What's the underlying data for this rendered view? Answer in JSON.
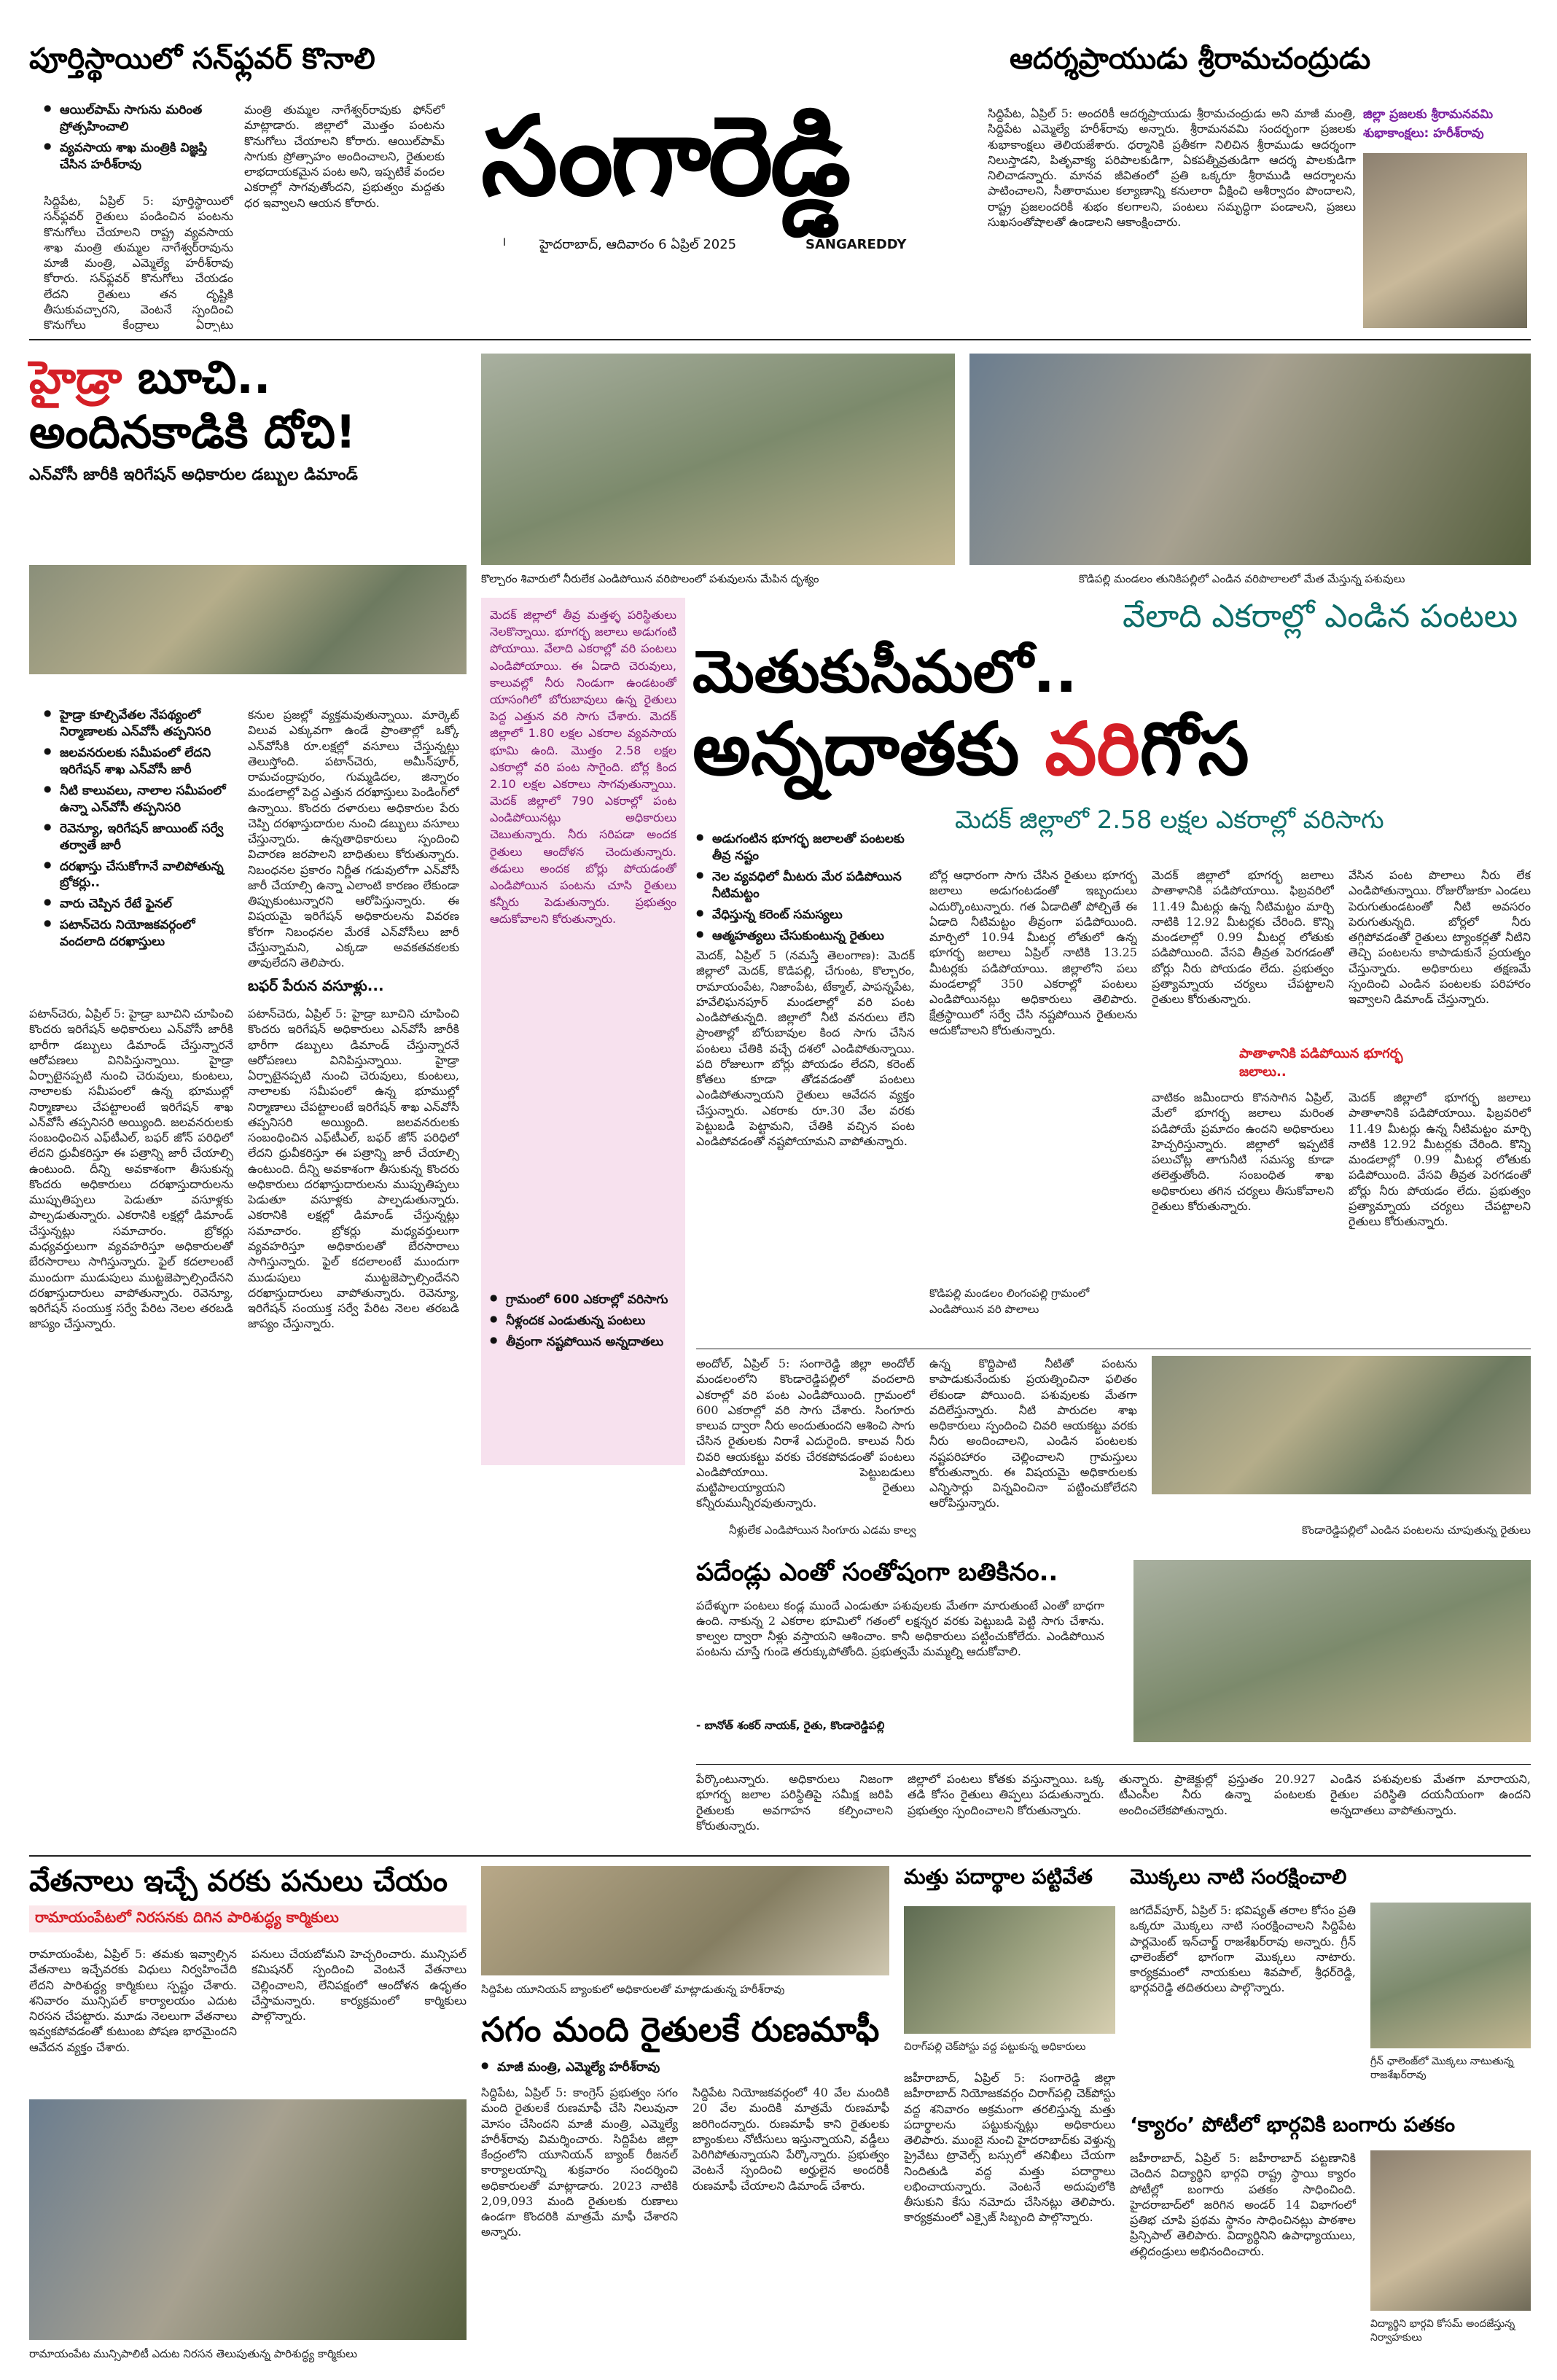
{
  "masthead": {
    "title": "సంగారెడ్డి",
    "dateline": "హైదరాబాద్, ఆదివారం  6 ఏప్రిల్ 2025",
    "roman_title": "SANGAREDDY",
    "page_no": "I"
  },
  "sunflower": {
    "headline": "పూర్తిస్థాయిలో సన్‌ఫ్లవర్ కొనాలి",
    "bullets": [
      "ఆయిల్‌పామ్ సాగును మరింత ప్రోత్సహించాలి",
      "వ్యవసాయ శాఖ మంత్రికి విజ్ఞప్తి చేసిన హరీశ్‌రావు"
    ],
    "body_left": "సిద్దిపేట, ఏప్రిల్ 5: పూర్తిస్థాయిలో సన్‌ఫ్లవర్ రైతులు పండించిన పంటను కొనుగోలు చేయాలని రాష్ట్ర వ్యవసాయ శాఖ మంత్రి తుమ్మల నాగేశ్వర్‌రావును మాజీ మంత్రి, ఎమ్మెల్యే హరీశ్‌రావు కోరారు. సన్‌ఫ్లవర్ కొనుగోలు చేయడం లేదని రైతులు తన దృష్టికి తీసుకువచ్చారని, వెంటనే స్పందించి కొనుగోలు కేంద్రాలు ఏర్పాటు చేయాలన్నారు.",
    "body_right": "మంత్రి తుమ్మల నాగేశ్వర్‌రావుకు ఫోన్‌లో మాట్లాడారు. జిల్లాలో మొత్తం పంటను కొనుగోలు చేయాలని కోరారు. ఆయిల్‌పామ్ సాగుకు ప్రోత్సాహం అందించాలని, రైతులకు లాభదాయకమైన పంట అని, ఇప్పటికే వందల ఎకరాల్లో సాగవుతోందని, ప్రభుత్వం మద్దతు ధర ఇవ్వాలని ఆయన కోరారు."
  },
  "ram": {
    "headline": "ఆదర్శప్రాయుడు శ్రీరామచంద్రుడు",
    "body": "సిద్దిపేట, ఏప్రిల్ 5: అందరికీ ఆదర్శప్రాయుడు శ్రీరామచంద్రుడు అని మాజీ మంత్రి, సిద్దిపేట ఎమ్మెల్యే హరీశ్‌రావు అన్నారు. శ్రీరామనవమి సందర్భంగా ప్రజలకు శుభాకాంక్షలు తెలియజేశారు. ధర్మానికి ప్రతీకగా నిలిచిన శ్రీరాముడు ఆదర్శంగా నిలుస్తాడని, పితృవాక్య పరిపాలకుడిగా, ఏకపత్నీవ్రతుడిగా ఆదర్శ పాలకుడిగా నిలిచాడన్నారు. మానవ జీవితంలో ప్రతి ఒక్కరూ శ్రీరాముడి ఆదర్శాలను పాటించాలని, సీతారాముల కల్యాణాన్ని కనులారా వీక్షించి ఆశీర్వాదం పొందాలని, రాష్ట్ర ప్రజలందరికీ శుభం కలగాలని, పంటలు సమృద్ధిగా పండాలని, ప్రజలు సుఖసంతోషాలతో ఉండాలని ఆకాంక్షించారు.",
    "side_label": "జిల్లా ప్రజలకు శ్రీరామనవమి శుభాకాంక్షలు: హరీశ్‌రావు"
  },
  "hydra": {
    "kicker": "హైడ్రా",
    "line1_rest": " బూచి..",
    "line2": "అందినకాడికి దోచి!",
    "subhead": "ఎన్‌వోసీ జారీకి ఇరిగేషన్ అధికారుల డబ్బుల డిమాండ్",
    "bullets": [
      "హైడ్రా కూల్చివేతల నేపథ్యంలో నిర్మాణాలకు ఎన్‌వోసీ తప్పనిసరి",
      "జలవనరులకు సమీపంలో లేదని ఇరిగేషన్ శాఖ ఎన్‌వోసీ జారీ",
      "నీటి కాలువలు, నాలాల సమీపంలో ఉన్నా ఎన్‌వోసీ తప్పనిసరి",
      "రెవెన్యూ, ఇరిగేషన్ జాయింట్ సర్వే తర్వాతే జారీ",
      "దరఖాస్తు చేసుకోగానే వాలిపోతున్న బ్రోకర్లు..",
      "వారు చెప్పిన రేటే ఫైనల్",
      "పటాన్‌చెరు నియోజకవర్గంలో వందలాది దరఖాస్తులు"
    ],
    "col1": "పటాన్‌చెరు, ఏప్రిల్ 5: హైడ్రా బూచిని చూపించి కొందరు ఇరిగేషన్ అధికారులు ఎన్‌వోసీ జారీకి భారీగా డబ్బులు డిమాండ్ చేస్తున్నారనే ఆరోపణలు వినిపిస్తున్నాయి. హైడ్రా ఏర్పాటైనప్పటి నుంచి చెరువులు, కుంటలు, నాలాలకు సమీపంలో ఉన్న భూముల్లో నిర్మాణాలు చేపట్టాలంటే ఇరిగేషన్ శాఖ ఎన్‌వోసీ తప్పనిసరి అయ్యింది. జలవనరులకు సంబంధించిన ఎఫ్‌టీఎల్, బఫర్ జోన్ పరిధిలో లేదని ధ్రువీకరిస్తూ ఈ పత్రాన్ని జారీ చేయాల్సి ఉంటుంది. దీన్ని అవకాశంగా తీసుకున్న కొందరు అధికారులు దరఖాస్తుదారులను ముప్పుతిప్పలు పెడుతూ వసూళ్లకు పాల్పడుతున్నారు. ఎకరానికి లక్షల్లో డిమాండ్ చేస్తున్నట్లు సమాచారం. బ్రోకర్లు మధ్యవర్తులుగా వ్యవహరిస్తూ అధికారులతో బేరసారాలు సాగిస్తున్నారు. ఫైల్ కదలాలంటే ముందుగా ముడుపులు ముట్టజెప్పాల్సిందేనని దరఖాస్తుదారులు వాపోతున్నారు. రెవెన్యూ, ఇరిగేషన్ సంయుక్త సర్వే పేరిట నెలల తరబడి జాప్యం చేస్తున్నారు.",
    "col2": "కనుల ప్రజల్లో వ్యక్తమవుతున్నాయి. మార్కెట్ విలువ ఎక్కువగా ఉండే ప్రాంతాల్లో ఒక్కో ఎన్‌వోసీకి రూ.లక్షల్లో వసూలు చేస్తున్నట్లు తెలుస్తోంది. పటాన్‌చెరు, అమీన్‌పూర్, రామచంద్రాపురం, గుమ్మడిదల, జిన్నారం మండలాల్లో పెద్ద ఎత్తున దరఖాస్తులు పెండింగ్‌లో ఉన్నాయి. కొందరు దళారులు అధికారుల పేరు చెప్పి దరఖాస్తుదారుల నుంచి డబ్బులు వసూలు చేస్తున్నారు. ఉన్నతాధికారులు స్పందించి విచారణ జరపాలని బాధితులు కోరుతున్నారు. నిబంధనల ప్రకారం నిర్ణీత గడువులోగా ఎన్‌వోసీ జారీ చేయాల్సి ఉన్నా ఎలాంటి కారణం లేకుండా తిప్పుకుంటున్నారని ఆరోపిస్తున్నారు. ఈ విషయమై ఇరిగేషన్ అధికారులను వివరణ కోరగా నిబంధనల మేరకే ఎన్‌వోసీలు జారీ చేస్తున్నామని, ఎక్కడా అవకతవకలకు తావులేదని తెలిపారు.",
    "subhead2": "బఫర్ పేరున వసూళ్లు..."
  },
  "lead": {
    "caption_left": "కొల్చారం శివారులో నీరులేక ఎండిపోయిన వరిపొలంలో పశువులను మేపిన దృశ్యం",
    "caption_right": "కొడిపల్లి మండలం తునికిపల్లిలో ఎండిన వరిపొలాలలో మేత మేస్తున్న పశువులు",
    "kicker": "వేలాది ఎకరాల్లో ఎండిన పంటలు",
    "head1": "మెతుకుసీమలో..",
    "head2a": "అన్నదాతకు ",
    "head2b": "వరి",
    "head2c": "గోస",
    "subhead": "మెదక్ జిల్లాలో 2.58 లక్షల ఎకరాల్లో వరిసాగు",
    "bullets": [
      "అడుగంటిన భూగర్భ జలాలతో పంటలకు తీవ్ర నష్టం",
      "నెల వ్యవధిలో మీటరు మేర పడిపోయిన నీటిమట్టం",
      "వేధిస్తున్న కరెంట్ సమస్యలు",
      "ఆత్మహత్యలు చేసుకుంటున్న రైతులు"
    ],
    "pink_box": "మెదక్ జిల్లాలో తీవ్ర మత్తళ్ళ పరిస్థితులు నెలకొన్నాయి. భూగర్భ జలాలు అడుగంటి పోయాయి. వేలాది ఎకరాల్లో వరి పంటలు ఎండిపోయాయి. ఈ ఏడాది చెరువులు, కాలువల్లో నీరు నిండుగా ఉండటంతో యాసంగిలో బోరుబావులు ఉన్న రైతులు పెద్ద ఎత్తున వరి సాగు చేశారు. మెదక్ జిల్లాలో 1.80 లక్షల ఎకరాల వ్యవసాయ భూమి ఉంది. మొత్తం 2.58 లక్షల ఎకరాల్లో వరి పంట సాగైంది. బోర్ల కింద 2.10 లక్షల ఎకరాలు సాగవుతున్నాయి. మెదక్ జిల్లాలో 790 ఎకరాల్లో పంట ఎండిపోయినట్లు అధికారులు చెబుతున్నారు. నీరు సరిపడా అందక రైతులు ఆందోళన చెందుతున్నారు. తడులు అందక బోర్లు పోయడంతో ఎండిపోయిన పంటను చూసి రైతులు కన్నీరు పెడుతున్నారు. ప్రభుత్వం ఆదుకోవాలని కోరుతున్నారు.",
    "box_bullets": [
      "గ్రామంలో 600 ఎకరాల్లో వరిసాగు",
      "నీళ్లందక ఎండుతున్న పంటలు",
      "తీవ్రంగా నష్టపోయిన అన్నదాతలు"
    ],
    "body_a": "మెదక్, ఏప్రిల్ 5 (నమస్తే తెలంగాణ): మెదక్ జిల్లాలో మెదక్, కొడిపల్లి, చేగుంట, కొల్చారం, రామాయంపేట, నిజాంపేట, టేక్మాల్, పాపన్నపేట, హవేలిఘనపూర్ మండలాల్లో వరి పంట ఎండిపోతున్నది. జిల్లాలో నీటి వనరులు లేని ప్రాంతాల్లో బోరుబావుల కింద సాగు చేసిన పంటలు చేతికి వచ్చే దశలో ఎండిపోతున్నాయి. పది రోజులుగా బోర్లు పోయడం లేదని, కరెంట్ కోతలు కూడా తోడవడంతో పంటలు ఎండిపోతున్నాయని రైతులు ఆవేదన వ్యక్తం చేస్తున్నారు. ఎకరాకు రూ.30 వేల వరకు పెట్టుబడి పెట్టామని, చేతికి వచ్చిన పంట ఎండిపోవడంతో నష్టపోయామని వాపోతున్నారు.",
    "body_b": "బోర్ల ఆధారంగా సాగు చేసిన రైతులు భూగర్భ జలాలు అడుగంటడంతో ఇబ్బందులు ఎదుర్కొంటున్నారు. గత ఏడాదితో పోల్చితే ఈ ఏడాది నీటిమట్టం తీవ్రంగా పడిపోయింది. మార్చిలో 10.94 మీటర్ల లోతులో ఉన్న భూగర్భ జలాలు ఏప్రిల్ నాటికి 13.25 మీటర్లకు పడిపోయాయి. జిల్లాలోని పలు మండలాల్లో 350 ఎకరాల్లో పంటలు ఎండిపోయినట్లు అధికారులు తెలిపారు. క్షేత్రస్థాయిలో సర్వే చేసి నష్టపోయిన రైతులను ఆదుకోవాలని కోరుతున్నారు.",
    "body_c": "మెదక్ జిల్లాలో భూగర్భ జలాలు పాతాళానికి పడిపోయాయి. ఫిబ్రవరిలో 11.49 మీటర్లు ఉన్న నీటిమట్టం మార్చి నాటికి 12.92 మీటర్లకు చేరింది. కొన్ని మండలాల్లో 0.99 మీటర్ల లోతుకు పడిపోయింది. వేసవి తీవ్రత పెరగడంతో బోర్లు నీరు పోయడం లేదు. ప్రభుత్వం ప్రత్యామ్నాయ చర్యలు చేపట్టాలని రైతులు కోరుతున్నారు.",
    "red_subhead": "పాతాళానికి పడిపోయిన భూగర్భ జలాలు..",
    "body_d": "వేసిన పంట పొలాలు నీరు లేక ఎండిపోతున్నాయి. రోజురోజుకూ ఎండలు పెరుగుతుండటంతో నీటి అవసరం పెరుగుతున్నది. బోర్లలో నీరు తగ్గిపోవడంతో రైతులు ట్యాంకర్లతో నీటిని తెచ్చి పంటలను కాపాడుకునే ప్రయత్నం చేస్తున్నారు. అధికారులు తక్షణమే స్పందించి ఎండిన పంటలకు పరిహారం ఇవ్వాలని డిమాండ్ చేస్తున్నారు.",
    "body_e": "వాటికం జమీందారు కొనసాగిన ఏప్రిల్, మేలో భూగర్భ జలాలు మరింత పడిపోయే ప్రమాదం ఉందని అధికారులు హెచ్చరిస్తున్నారు. జిల్లాలో ఇప్పటికే పలుచోట్ల తాగునీటి సమస్య కూడా తలెత్తుతోంది. సంబంధిత శాఖ అధికారులు తగిన చర్యలు తీసుకోవాలని రైతులు కోరుతున్నారు.",
    "mid_caption": "కొడిపల్లి మండలం లింగంపల్లి గ్రామంలో ఎండిపోయిన వరి పొలాలు",
    "andole_a": "అందోల్, ఏప్రిల్ 5: సంగారెడ్డి జిల్లా అందోల్ మండలంలోని కొండారెడ్డిపల్లిలో వందలాది ఎకరాల్లో వరి పంట ఎండిపోయింది. గ్రామంలో 600 ఎకరాల్లో వరి సాగు చేశారు. సింగూరు కాలువ ద్వారా నీరు అందుతుందని ఆశించి సాగు చేసిన రైతులకు నిరాశే ఎదురైంది. కాలువ నీరు చివరి ఆయకట్టు వరకు చేరకపోవడంతో పంటలు ఎండిపోయాయి. పెట్టుబడులు మట్టిపాలయ్యాయని రైతులు కన్నీరుమున్నీరవుతున్నారు.",
    "andole_b": "ఉన్న కొద్దిపాటి నీటితో పంటను కాపాడుకునేందుకు ప్రయత్నించినా ఫలితం లేకుండా పోయింది. పశువులకు మేతగా వదిలేస్తున్నారు. నీటి పారుదల శాఖ అధికారులు స్పందించి చివరి ఆయకట్టు వరకు నీరు అందించాలని, ఎండిన పంటలకు నష్టపరిహారం చెల్లించాలని గ్రామస్తులు కోరుతున్నారు. ఈ విషయమై అధికారులకు ఎన్నిసార్లు విన్నవించినా పట్టించుకోలేదని ఆరోపిస్తున్నారు.",
    "andole_c": "చెరువుల్లో నీరు ఉన్నా పంట పొలాలకు చేరడం లేదని వాపోతున్నారు. వ్యవసాయ శాఖ అధికారులు క్షేత్రస్థాయిలో పర్యటించి నష్టాన్ని అంచనా వేయాలని కోరుతున్నారు.",
    "quote_caption": "నీళ్లులేక ఎండిపోయిన సింగూరు ఎడమ కాల్వ",
    "photo_caption": "కొండారెడ్డిపల్లిలో ఎండిన పంటలను చూపుతున్న రైతులు",
    "quote_head": "పదేండ్లు ఎంతో సంతోషంగా బతికినం..",
    "quote_body": "పదేళ్ళుగా పంటలు కండ్ల ముందే ఎండుతూ పశువులకు మేతగా మారుతుంటే ఎంతో బాధగా ఉంది. నాకున్న 2 ఎకరాల భూమిలో గతంలో లక్షన్నర వరకు పెట్టుబడి పెట్టి సాగు చేశాను. కాల్వల ద్వారా నీళ్లు వస్తాయని ఆశించాం. కానీ అధికారులు పట్టించుకోలేదు. ఎండిపోయిన పంటను చూస్తే గుండె తరుక్కుపోతోంది. ప్రభుత్వమే మమ్మల్ని ఆదుకోవాలి.",
    "quote_attr": "- బానోత్ శంకర్ నాయక్, రైతు, కొండారెడ్డిపల్లి",
    "bottom_a": "పేర్కొంటున్నారు. అధికారులు నిజంగా భూగర్భ జలాల పరిస్థితిపై సమీక్ష జరిపి రైతులకు అవగాహన కల్పించాలని కోరుతున్నారు.",
    "bottom_b": "జిల్లాలో పంటలు కోతకు వస్తున్నాయి. ఒక్క తడి కోసం రైతులు తిప్పలు పడుతున్నారు. ప్రభుత్వం స్పందించాలని కోరుతున్నారు.",
    "bottom_c": "తున్నారు. ప్రాజెక్టుల్లో ప్రస్తుతం 20.927 టీఎంసీల నీరు ఉన్నా పంటలకు అందించలేకపోతున్నారు.",
    "bottom_d": "ఎండిన పశువులకు మేతగా మారాయని, రైతుల పరిస్థితి దయనీయంగా ఉందని అన్నదాతలు వాపోతున్నారు."
  },
  "wages": {
    "headline": "వేతనాలు ఇచ్చే వరకు పనులు చేయం",
    "red_subhead": "రామాయంపేటలో నిరసనకు దిగిన పారిశుద్ధ్య కార్మికులు",
    "body_left": "రామాయంపేట, ఏప్రిల్ 5: తమకు ఇవ్వాల్సిన వేతనాలు ఇచ్చేవరకు విధులు నిర్వహించేది లేదని పారిశుద్ధ్య కార్మికులు స్పష్టం చేశారు. శనివారం మున్సిపల్ కార్యాలయం ఎదుట నిరసన చేపట్టారు. మూడు నెలలుగా వేతనాలు ఇవ్వకపోవడంతో కుటుంబ పోషణ భారమైందని ఆవేదన వ్యక్తం చేశారు.",
    "body_right": "పనులు చేయబోమని హెచ్చరించారు. మున్సిపల్ కమిషనర్ స్పందించి వెంటనే వేతనాలు చెల్లించాలని, లేనిపక్షంలో ఆందోళన ఉధృతం చేస్తామన్నారు. కార్యక్రమంలో కార్మికులు పాల్గొన్నారు.",
    "caption": "రామాయంపేట మున్సిపాలిటీ ఎదుట నిరసన తెలుపుతున్న పారిశుద్ధ్య కార్మికులు"
  },
  "loan": {
    "caption_top": "సిద్దిపేట యూనియన్ బ్యాంకులో అధికారులతో మాట్లాడుతున్న హరీశ్‌రావు",
    "headline": "సగం మంది రైతులకే రుణమాఫీ",
    "bullet": "మాజీ మంత్రి, ఎమ్మెల్యే హరీశ్‌రావు",
    "body_left": "సిద్దిపేట, ఏప్రిల్ 5: కాంగ్రెస్ ప్రభుత్వం సగం మంది రైతులకే రుణమాఫీ చేసి నిలువునా మోసం చేసిందని మాజీ మంత్రి, ఎమ్మెల్యే హరీశ్‌రావు విమర్శించారు. సిద్దిపేట జిల్లా కేంద్రంలోని యూనియన్ బ్యాంక్ రీజనల్ కార్యాలయాన్ని శుక్రవారం సందర్శించి అధికారులతో మాట్లాడారు. 2023 నాటికి 2,09,093 మంది రైతులకు రుణాలు ఉండగా కొందరికి మాత్రమే మాఫీ చేశారని అన్నారు.",
    "body_mid": "సిద్దిపేట నియోజకవర్గంలో 40 వేల మందికి 20 వేల మందికి మాత్రమే రుణమాఫీ జరిగిందన్నారు. రుణమాఫీ కాని రైతులకు బ్యాంకులు నోటీసులు ఇస్తున్నాయని, వడ్డీలు పెరిగిపోతున్నాయని పేర్కొన్నారు. ప్రభుత్వం వెంటనే స్పందించి అర్హులైన అందరికీ రుణమాఫీ చేయాలని డిమాండ్ చేశారు.",
    "body_right": "చర్చించారు. రైతుల సమస్యలపై పోరాటం కొనసాగిస్తామన్నారు. కార్యక్రమంలో నాయకులు పాల్గొన్నారు."
  },
  "drugs": {
    "headline": "మత్తు పదార్థాల పట్టివేత",
    "caption": "చిరాగ్‌పల్లి చెక్‌పోస్టు వద్ద పట్టుకున్న అధికారులు",
    "body": "జహీరాబాద్, ఏప్రిల్ 5: సంగారెడ్డి జిల్లా జహీరాబాద్ నియోజకవర్గం చిరాగ్‌పల్లి చెక్‌పోస్టు వద్ద శనివారం అక్రమంగా తరలిస్తున్న మత్తు పదార్థాలను పట్టుకున్నట్లు అధికారులు తెలిపారు. ముంబై నుంచి హైదరాబాద్‌కు వెళ్తున్న ప్రైవేటు ట్రావెల్స్ బస్సులో తనిఖీలు చేయగా నిందితుడి వద్ద మత్తు పదార్థాలు లభించాయన్నారు. వెంటనే అదుపులోకి తీసుకుని కేసు నమోదు చేసినట్లు తెలిపారు. కార్యక్రమంలో ఎక్సైజ్ సిబ్బంది పాల్గొన్నారు."
  },
  "plants": {
    "headline": "మొక్కలు నాటి సంరక్షించాలి",
    "body": "జగదేవ్‌పూర్, ఏప్రిల్ 5: భవిష్యత్ తరాల కోసం ప్రతి ఒక్కరూ మొక్కలు నాటి సంరక్షించాలని సిద్దిపేట పార్లమెంట్ ఇన్‌చార్జ్ రాజశేఖర్‌రావు అన్నారు. గ్రీన్ ఛాలెంజ్‌లో భాగంగా మొక్కలు నాటారు. కార్యక్రమంలో నాయకులు శివపాల్, శ్రీధర్‌రెడ్డి, భార్గవరెడ్డి తదితరులు పాల్గొన్నారు.",
    "caption": "గ్రీన్ ఛాలెంజ్‌లో మొక్కలు నాటుతున్న రాజశేఖర్‌రావు"
  },
  "carrom": {
    "headline": "‘క్యారం’ పోటీలో భార్గవికి బంగారు పతకం",
    "body": "జహీరాబాద్, ఏప్రిల్ 5: జహీరాబాద్ పట్టణానికి చెందిన విద్యార్థిని భార్గవి రాష్ట్ర స్థాయి క్యారం పోటీల్లో బంగారు పతకం సాధించింది. హైదరాబాద్‌లో జరిగిన అండర్ 14 విభాగంలో ప్రతిభ చూపి ప్రథమ స్థానం సాధించినట్లు పాఠశాల ప్రిన్సిపాల్ తెలిపారు. విద్యార్థినిని ఉపాధ్యాయులు, తల్లిదండ్రులు అభినందించారు.",
    "caption": "విద్యార్థిని భార్గవి కోసమ్ అందజేస్తున్న నిర్వాహకులు"
  }
}
